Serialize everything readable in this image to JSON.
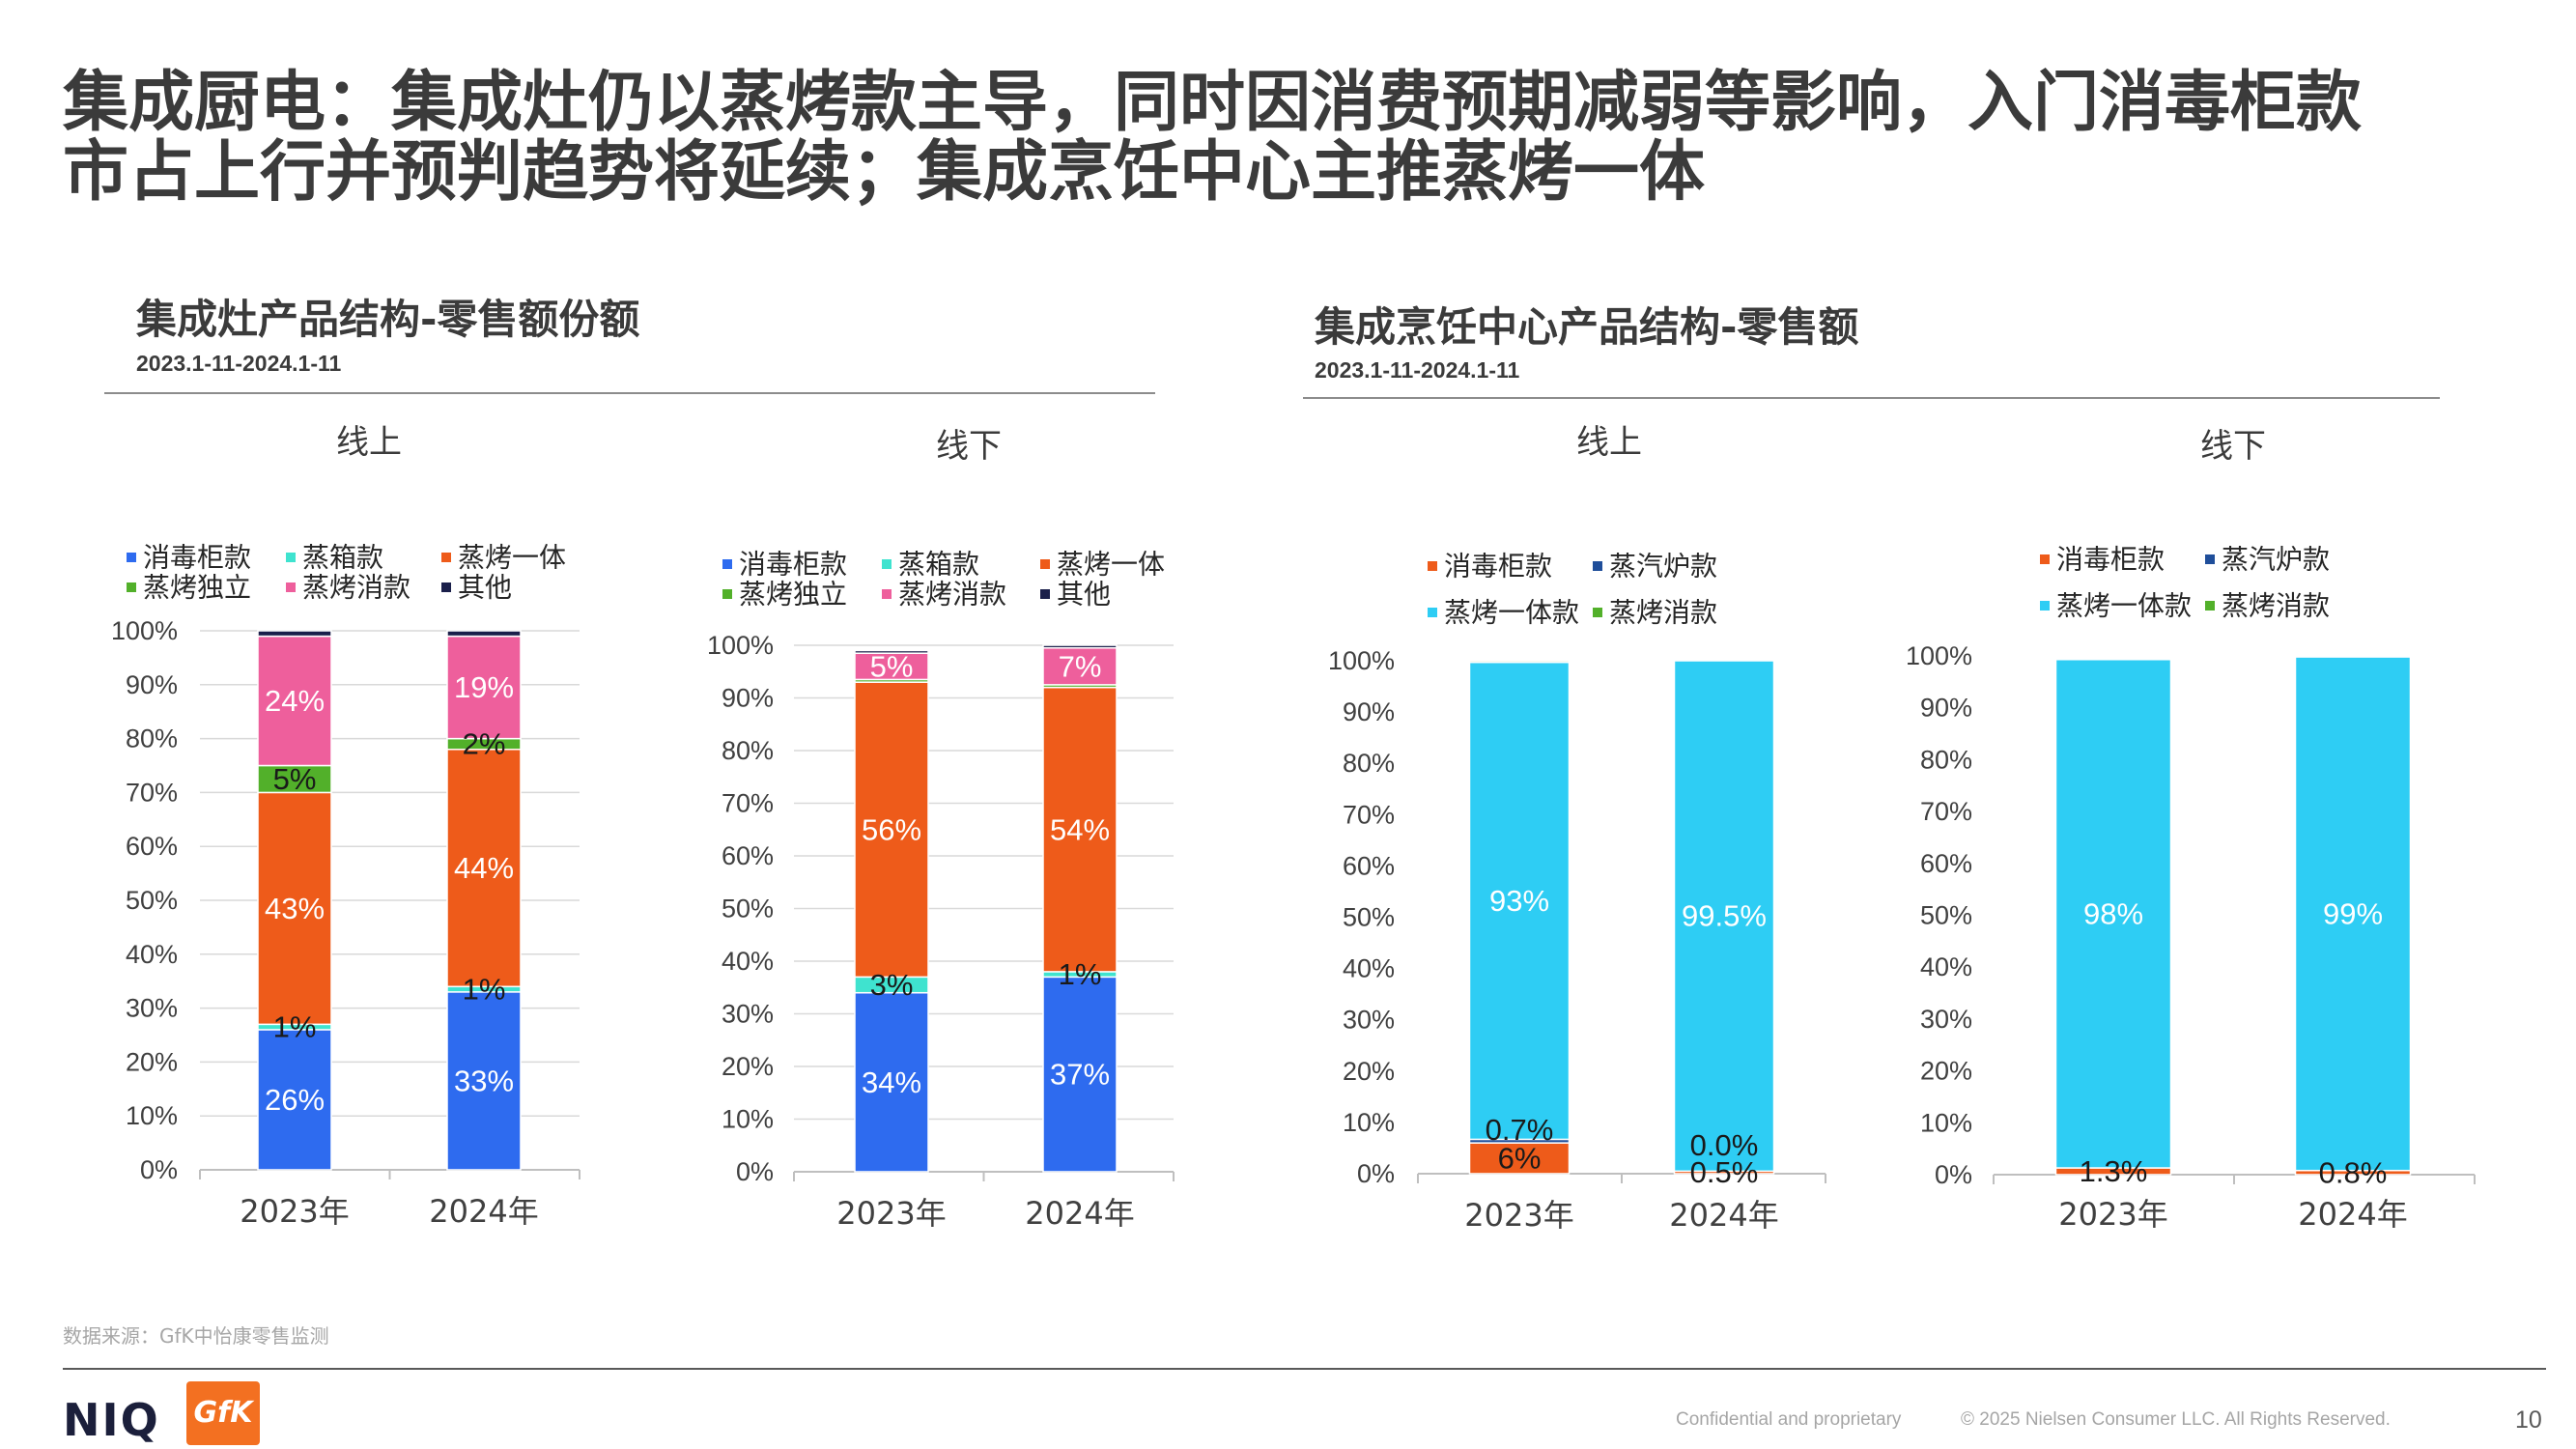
{
  "slide": {
    "title": {
      "line1": "集成厨电：集成灶仍以蒸烤款主导，同时因消费预期减弱等影响，入门消毒柜款",
      "line2": "市占上行并预判趋势将延续；集成烹饪中心主推蒸烤一体"
    },
    "page_number": "10"
  },
  "sections": {
    "left": {
      "title": "集成灶产品结构-零售额份额",
      "date_range": "2023.1-11-2024.1-11"
    },
    "right": {
      "title": "集成烹饪中心产品结构-零售额",
      "date_range": "2023.1-11-2024.1-11"
    }
  },
  "footer": {
    "source": "数据来源：GfK中怡康零售监测",
    "confidential": "Confidential and proprietary",
    "copyright": "© 2025 Nielsen Consumer LLC. All Rights Reserved.",
    "logos": {
      "niq": "NIQ",
      "gfk": "GfK"
    },
    "colors": {
      "niq_navy": "#1B1F3B",
      "gfk_orange": "#F37021"
    }
  },
  "chart_data": [
    {
      "type": "bar",
      "stacked": true,
      "title": "线上",
      "categories": [
        "2023年",
        "2024年"
      ],
      "ylim": [
        0,
        100
      ],
      "y_ticks": [
        "0%",
        "10%",
        "20%",
        "30%",
        "40%",
        "50%",
        "60%",
        "70%",
        "80%",
        "90%",
        "100%"
      ],
      "grid": true,
      "legend_position": "top",
      "series": [
        {
          "name": "消毒柜款",
          "color": "#2E6BEF",
          "label_color": "#FFFFFF",
          "values": [
            26,
            33
          ],
          "labels": [
            "26%",
            "33%"
          ]
        },
        {
          "name": "蒸箱款",
          "color": "#3FE3CF",
          "label_color": "#1A1A1A",
          "values": [
            1,
            1
          ],
          "labels": [
            "1%",
            "1%"
          ]
        },
        {
          "name": "蒸烤一体",
          "color": "#EE5B1A",
          "label_color": "#FFFFFF",
          "values": [
            43,
            44
          ],
          "labels": [
            "43%",
            "44%"
          ]
        },
        {
          "name": "蒸烤独立",
          "color": "#52B02A",
          "label_color": "#1A1A1A",
          "values": [
            5,
            2
          ],
          "labels": [
            "5%",
            "2%"
          ]
        },
        {
          "name": "蒸烤消款",
          "color": "#EE5F9C",
          "label_color": "#FFFFFF",
          "values": [
            24,
            19
          ],
          "labels": [
            "24%",
            "19%"
          ]
        },
        {
          "name": "其他",
          "color": "#1A1F4A",
          "label_color": "#1A1A1A",
          "values": [
            1,
            1
          ],
          "labels": [
            null,
            null
          ]
        }
      ]
    },
    {
      "type": "bar",
      "stacked": true,
      "title": "线下",
      "categories": [
        "2023年",
        "2024年"
      ],
      "ylim": [
        0,
        100
      ],
      "y_ticks": [
        "0%",
        "10%",
        "20%",
        "30%",
        "40%",
        "50%",
        "60%",
        "70%",
        "80%",
        "90%",
        "100%"
      ],
      "grid": true,
      "legend_position": "top",
      "series": [
        {
          "name": "消毒柜款",
          "color": "#2E6BEF",
          "label_color": "#FFFFFF",
          "values": [
            34,
            37
          ],
          "labels": [
            "34%",
            "37%"
          ]
        },
        {
          "name": "蒸箱款",
          "color": "#3FE3CF",
          "label_color": "#1A1A1A",
          "values": [
            3,
            1
          ],
          "labels": [
            "3%",
            "1%"
          ]
        },
        {
          "name": "蒸烤一体",
          "color": "#EE5B1A",
          "label_color": "#FFFFFF",
          "values": [
            56,
            54
          ],
          "labels": [
            "56%",
            "54%"
          ]
        },
        {
          "name": "蒸烤独立",
          "color": "#52B02A",
          "label_color": "#1A1A1A",
          "values": [
            0.5,
            0.5
          ],
          "labels": [
            null,
            null
          ]
        },
        {
          "name": "蒸烤消款",
          "color": "#EE5F9C",
          "label_color": "#FFFFFF",
          "values": [
            5,
            7
          ],
          "labels": [
            "5%",
            "7%"
          ]
        },
        {
          "name": "其他",
          "color": "#1A1F4A",
          "label_color": "#1A1A1A",
          "values": [
            0.5,
            0.5
          ],
          "labels": [
            null,
            null
          ]
        }
      ]
    },
    {
      "type": "bar",
      "stacked": true,
      "title": "线上",
      "categories": [
        "2023年",
        "2024年"
      ],
      "ylim": [
        0,
        100
      ],
      "y_ticks": [
        "0%",
        "10%",
        "20%",
        "30%",
        "40%",
        "50%",
        "60%",
        "70%",
        "80%",
        "90%",
        "100%"
      ],
      "grid": false,
      "legend_position": "top",
      "series": [
        {
          "name": "消毒柜款",
          "color": "#EE5B1A",
          "label_color": "#1A1A1A",
          "values": [
            6,
            0.5
          ],
          "labels": [
            "6%",
            "0.5%"
          ]
        },
        {
          "name": "蒸汽炉款",
          "color": "#1F4E9A",
          "label_color": "#1A1A1A",
          "values": [
            0.7,
            0.0
          ],
          "labels": [
            "0.7%",
            "0.0%"
          ]
        },
        {
          "name": "蒸烤一体款",
          "color": "#2ECDF4",
          "label_color": "#FFFFFF",
          "values": [
            93,
            99.5
          ],
          "labels": [
            "93%",
            "99.5%"
          ]
        },
        {
          "name": "蒸烤消款",
          "color": "#52B02A",
          "label_color": "#1A1A1A",
          "values": [
            0.3,
            0
          ],
          "labels": [
            null,
            null
          ]
        }
      ]
    },
    {
      "type": "bar",
      "stacked": true,
      "title": "线下",
      "categories": [
        "2023年",
        "2024年"
      ],
      "ylim": [
        0,
        100
      ],
      "y_ticks": [
        "0%",
        "10%",
        "20%",
        "30%",
        "40%",
        "50%",
        "60%",
        "70%",
        "80%",
        "90%",
        "100%"
      ],
      "grid": false,
      "legend_position": "top",
      "series": [
        {
          "name": "消毒柜款",
          "color": "#EE5B1A",
          "label_color": "#1A1A1A",
          "values": [
            1.3,
            0.8
          ],
          "labels": [
            "1.3%",
            "0.8%"
          ]
        },
        {
          "name": "蒸汽炉款",
          "color": "#1F4E9A",
          "label_color": "#1A1A1A",
          "values": [
            0,
            0
          ],
          "labels": [
            null,
            null
          ]
        },
        {
          "name": "蒸烤一体款",
          "color": "#2ECDF4",
          "label_color": "#FFFFFF",
          "values": [
            98,
            99
          ],
          "labels": [
            "98%",
            "99%"
          ]
        },
        {
          "name": "蒸烤消款",
          "color": "#52B02A",
          "label_color": "#1A1A1A",
          "values": [
            0,
            0
          ],
          "labels": [
            null,
            null
          ]
        }
      ]
    }
  ]
}
